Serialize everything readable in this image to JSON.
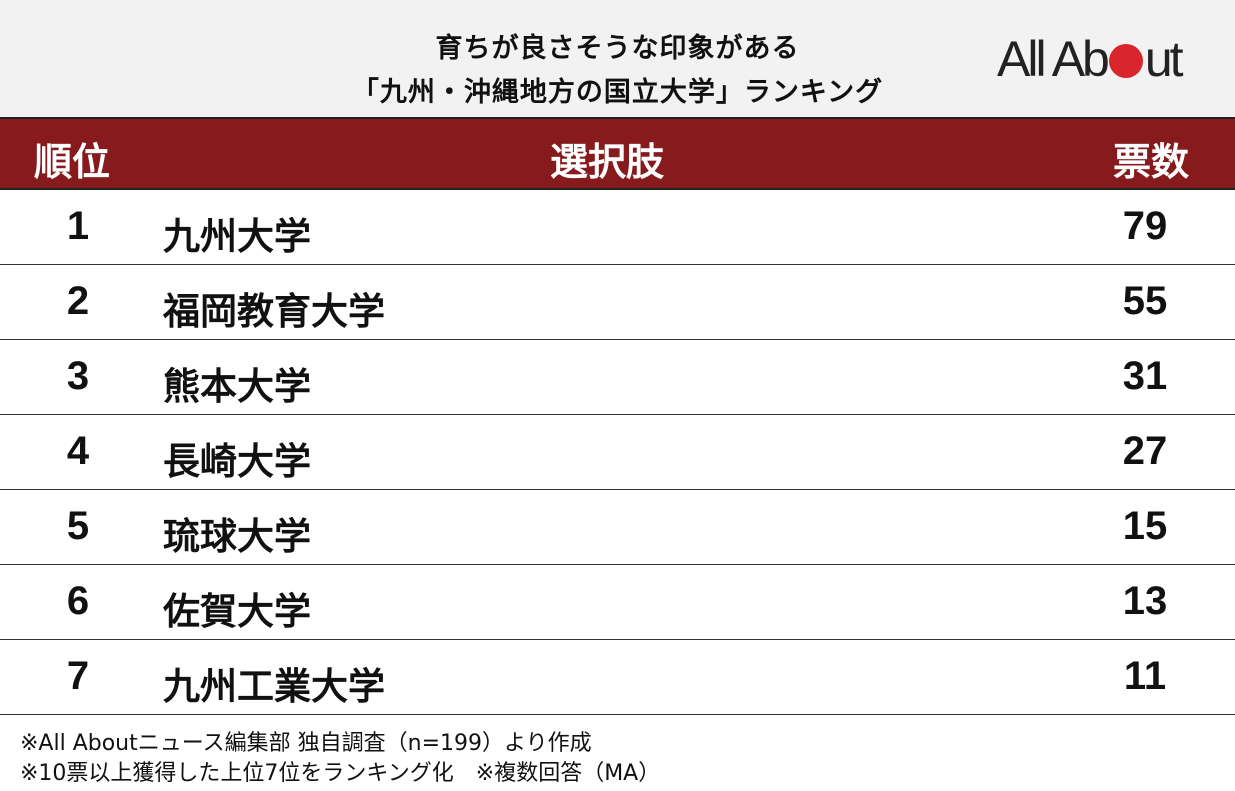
{
  "title_lines": [
    "育ちが良さそうな印象がある",
    "「九州・沖縄地方の国立大学」ランキング"
  ],
  "logo": "All About",
  "colors": {
    "header_bg": "#861a1c",
    "title_bg": "#f2f2f2",
    "logo_dot": "#d9262c"
  },
  "chart_data": {
    "type": "table",
    "columns": [
      "順位",
      "選択肢",
      "票数"
    ],
    "rows": [
      {
        "rank": "1",
        "name": "九州大学",
        "votes": "79"
      },
      {
        "rank": "2",
        "name": "福岡教育大学",
        "votes": "55"
      },
      {
        "rank": "3",
        "name": "熊本大学",
        "votes": "31"
      },
      {
        "rank": "4",
        "name": "長崎大学",
        "votes": "27"
      },
      {
        "rank": "5",
        "name": "琉球大学",
        "votes": "15"
      },
      {
        "rank": "6",
        "name": "佐賀大学",
        "votes": "13"
      },
      {
        "rank": "7",
        "name": "九州工業大学",
        "votes": "11"
      }
    ]
  },
  "footnotes": [
    "※All Aboutニュース編集部 独自調査（n=199）より作成",
    "※10票以上獲得した上位7位をランキング化　※複数回答（MA）"
  ]
}
